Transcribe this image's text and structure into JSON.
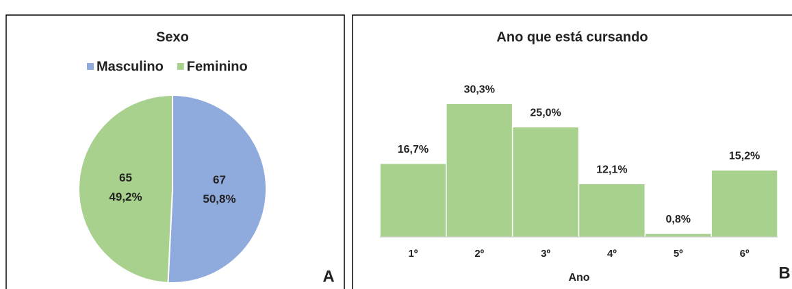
{
  "chart_data": [
    {
      "type": "pie",
      "title": "Sexo",
      "categories": [
        "Masculino",
        "Feminino"
      ],
      "values": [
        67,
        65
      ],
      "percents": [
        50.8,
        49.2
      ],
      "percent_labels": [
        "50,8%",
        "49,2%"
      ],
      "colors": [
        "#8faadc",
        "#a9d18e"
      ],
      "legend": "top",
      "annotation": "A"
    },
    {
      "type": "bar",
      "title": "Ano que está cursando",
      "xlabel": "Ano",
      "categories": [
        "1º",
        "2º",
        "3º",
        "4º",
        "5º",
        "6º"
      ],
      "values": [
        16.7,
        30.3,
        25.0,
        12.1,
        0.8,
        15.2
      ],
      "value_labels": [
        "16,7%",
        "30,3%",
        "25,0%",
        "12,1%",
        "0,8%",
        "15,2%"
      ],
      "color": "#a9d18e",
      "ylim": [
        0,
        35
      ],
      "annotation": "B"
    }
  ]
}
